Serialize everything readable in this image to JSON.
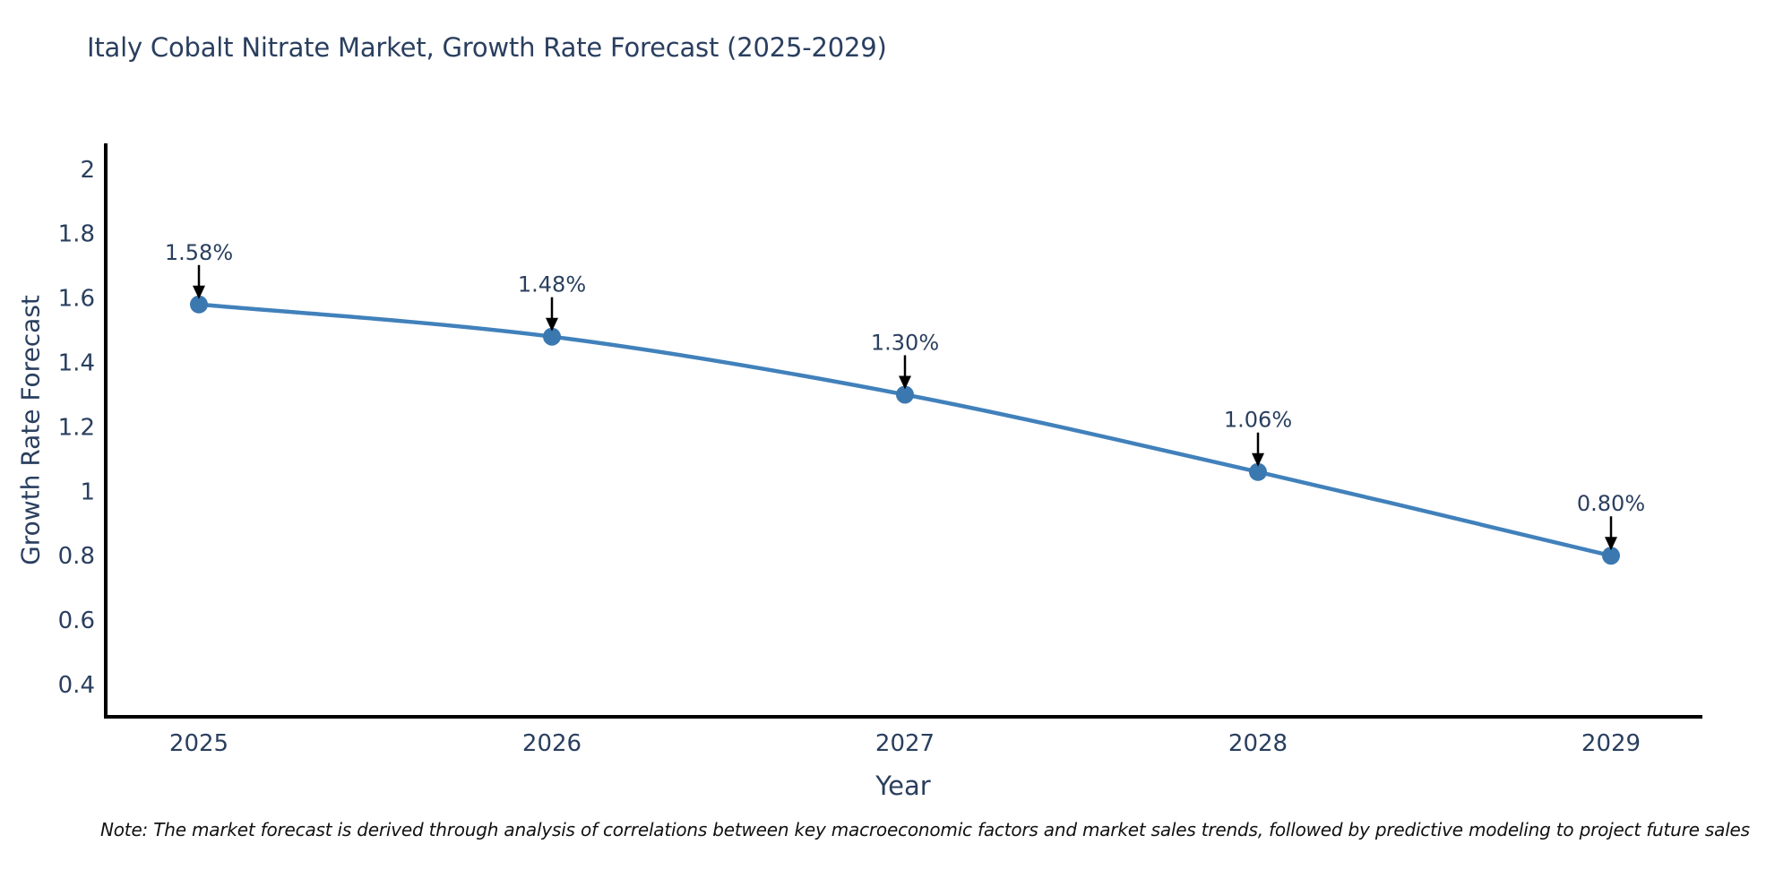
{
  "title": "Italy Cobalt Nitrate Market, Growth Rate Forecast (2025-2029)",
  "note": "Note: The market forecast is derived through analysis of correlations between key macroeconomic factors and market sales trends, followed by predictive modeling to project future sales",
  "colors": {
    "title_text": "#2a3f5f",
    "tick_text": "#2a3f5f",
    "annotation_text": "#2a3f5f",
    "line": "#4181bb",
    "marker": "#3c78b0",
    "axis_line": "#000000",
    "arrow": "#000000",
    "note_text": "#111111",
    "background": "#ffffff"
  },
  "chart_data": {
    "type": "line",
    "title": "Italy Cobalt Nitrate Market, Growth Rate Forecast (2025-2029)",
    "xlabel": "Year",
    "ylabel": "Growth Rate Forecast",
    "x": [
      2025,
      2026,
      2027,
      2028,
      2029
    ],
    "series": [
      {
        "name": "Growth Rate Forecast",
        "values": [
          1.58,
          1.48,
          1.3,
          1.06,
          0.8
        ],
        "point_labels": [
          "1.58%",
          "1.48%",
          "1.30%",
          "1.06%",
          "0.80%"
        ]
      }
    ],
    "xtick_labels": [
      "2025",
      "2026",
      "2027",
      "2028",
      "2029"
    ],
    "ytick_values": [
      0.4,
      0.6,
      0.8,
      1.0,
      1.2,
      1.4,
      1.6,
      1.8,
      2.0
    ],
    "ytick_labels": [
      "0.4",
      "0.6",
      "0.8",
      "1",
      "1.2",
      "1.4",
      "1.6",
      "1.8",
      "2"
    ],
    "ylim": [
      0.3,
      2.08
    ],
    "grid": false,
    "legend_position": "none",
    "line_shape": "spline",
    "marker_style": "circle",
    "annotations_have_arrows": true
  }
}
